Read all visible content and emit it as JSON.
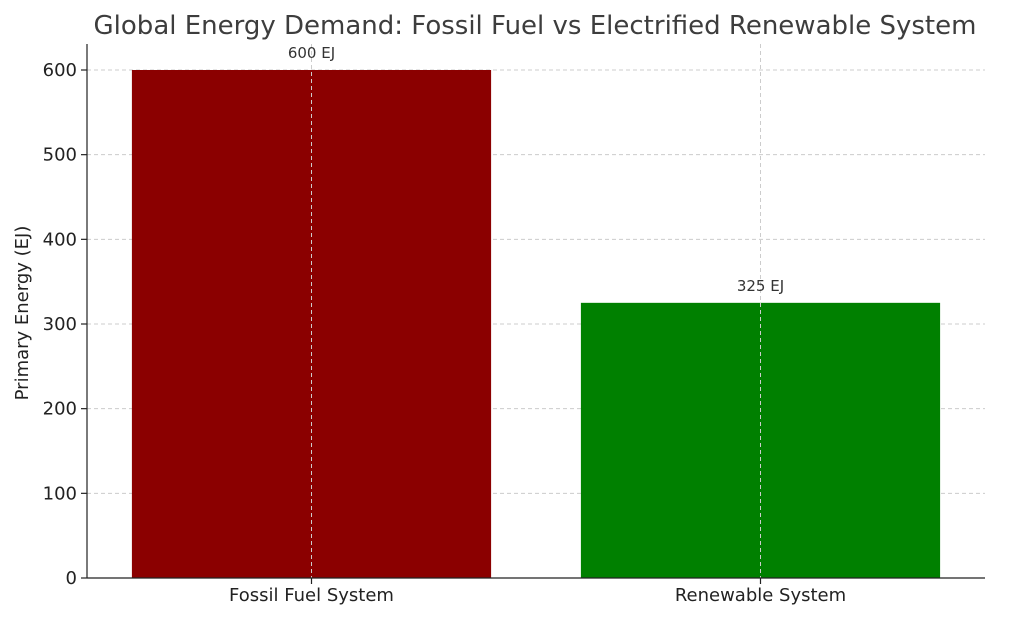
{
  "chart_data": {
    "type": "bar",
    "title": "Global Energy Demand: Fossil Fuel vs Electrified Renewable System",
    "xlabel": "",
    "ylabel": "Primary Energy (EJ)",
    "categories": [
      "Fossil Fuel System",
      "Renewable System"
    ],
    "values": [
      600,
      325
    ],
    "data_labels": [
      "600 EJ",
      "325 EJ"
    ],
    "colors": [
      "#8b0000",
      "#008000"
    ],
    "ylim": [
      0,
      630
    ],
    "yticks": [
      0,
      100,
      200,
      300,
      400,
      500,
      600
    ],
    "grid": true
  }
}
